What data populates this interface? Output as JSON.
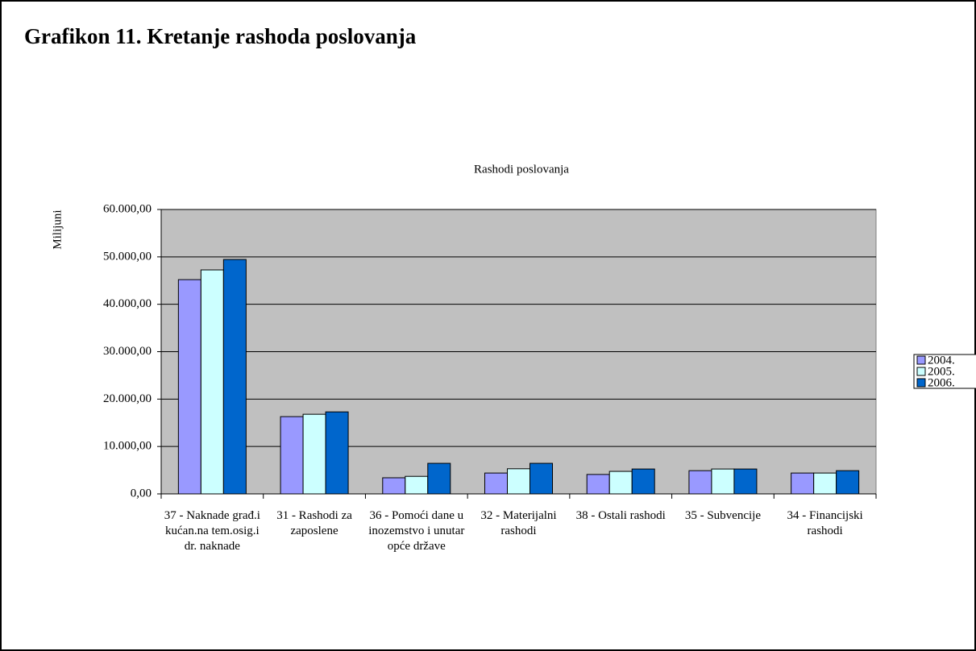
{
  "page_title": "Grafikon 11. Kretanje rashoda poslovanja",
  "chart_data": {
    "type": "bar",
    "title": "Rashodi poslovanja",
    "y_label": "Milijuni",
    "categories": [
      "37 - Naknade građ.i kućan.na tem.osig.i dr. naknade",
      "31 - Rashodi za zaposlene",
      "36 - Pomoći dane u inozemstvo i unutar opće države",
      "32 - Materijalni rashodi",
      "38 - Ostali rashodi",
      "35 - Subvencije",
      "34 - Financijski rashodi"
    ],
    "series": [
      {
        "name": "2004.",
        "color": "#9999ff",
        "values": [
          45200,
          16300,
          3400,
          4400,
          4100,
          4900,
          4400
        ]
      },
      {
        "name": "2005.",
        "color": "#ccffff",
        "values": [
          47250,
          16800,
          3700,
          5300,
          4750,
          5250,
          4400
        ]
      },
      {
        "name": "2006.",
        "color": "#0066cc",
        "values": [
          49450,
          17300,
          6450,
          6450,
          5250,
          5250,
          4900
        ]
      }
    ],
    "ylim": [
      0,
      60000
    ],
    "yticks": [
      {
        "value": 0,
        "label": "0,00"
      },
      {
        "value": 10000,
        "label": "10.000,00"
      },
      {
        "value": 20000,
        "label": "20.000,00"
      },
      {
        "value": 30000,
        "label": "30.000,00"
      },
      {
        "value": 40000,
        "label": "40.000,00"
      },
      {
        "value": 50000,
        "label": "50.000,00"
      },
      {
        "value": 60000,
        "label": "60.000,00"
      }
    ],
    "grid": true,
    "legend": "right"
  }
}
